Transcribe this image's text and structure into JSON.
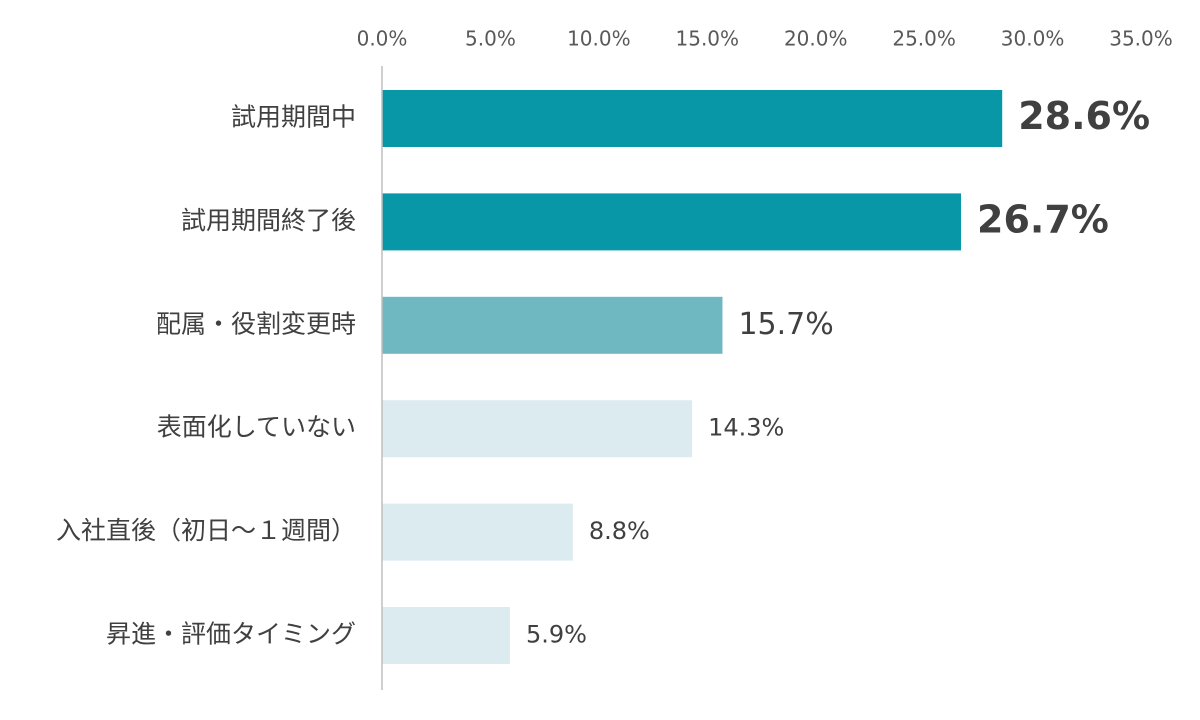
{
  "chart_data": {
    "type": "bar",
    "orientation": "horizontal",
    "title": "",
    "xlabel": "",
    "ylabel": "",
    "xlim": [
      0,
      35
    ],
    "axis_position": "top",
    "grid": false,
    "legend": "none",
    "x_ticks": [
      "0.0%",
      "5.0%",
      "10.0%",
      "15.0%",
      "20.0%",
      "25.0%",
      "30.0%",
      "35.0%"
    ],
    "categories": [
      "試用期間中",
      "試用期間終了後",
      "配属・役割変更時",
      "表面化していない",
      "入社直後（初日～１週間）",
      "昇進・評価タイミング"
    ],
    "values": [
      28.6,
      26.7,
      15.7,
      14.3,
      8.8,
      5.9
    ],
    "value_labels": [
      "28.6%",
      "26.7%",
      "15.7%",
      "14.3%",
      "8.8%",
      "5.9%"
    ],
    "bar_colors": [
      "#0897a6",
      "#0897a6",
      "#6fb8c2",
      "#dcebef",
      "#dcebef",
      "#dcebef"
    ],
    "label_emphasis": [
      "large-bold",
      "large-bold",
      "medium",
      "normal",
      "normal",
      "normal"
    ]
  }
}
